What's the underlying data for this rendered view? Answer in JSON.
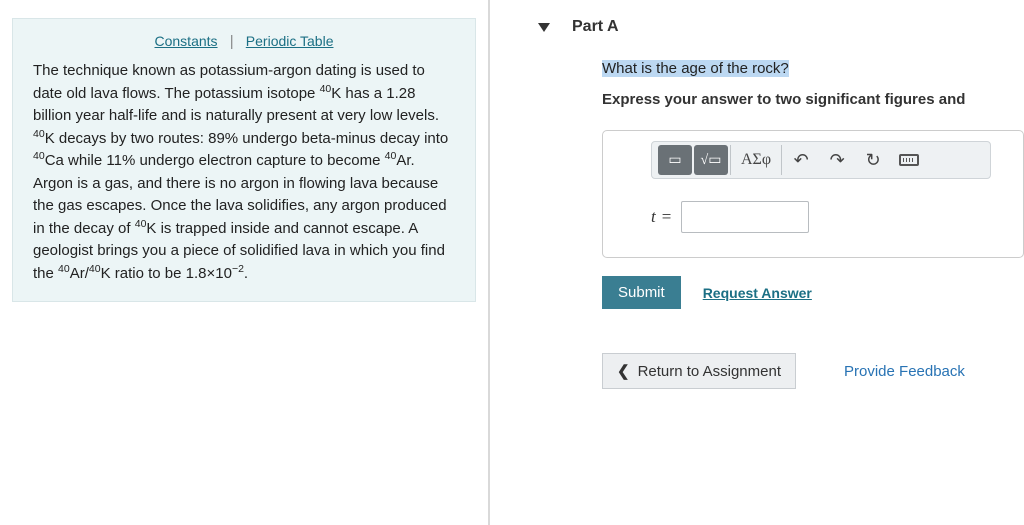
{
  "left": {
    "links": {
      "constants": "Constants",
      "periodic": "Periodic Table"
    },
    "text_html": "The technique known as potassium-argon dating is used to date old lava flows. The potassium isotope <sup>40</sup>K has a 1.28 billion year half-life and is naturally present at very low levels. <sup>40</sup>K decays by two routes: 89% undergo beta-minus decay into <sup>40</sup>Ca while 11% undergo electron capture to become <sup>40</sup>Ar. Argon is a gas, and there is no argon in flowing lava because the gas escapes. Once the lava solidifies, any argon produced in the decay of <sup>40</sup>K is trapped inside and cannot escape. A geologist brings you a piece of solidified lava in which you find the <sup>40</sup>Ar/<sup>40</sup>K ratio to be 1.8×10<sup>−2</sup>."
  },
  "right": {
    "part_label": "Part A",
    "question": "What is the age of the rock?",
    "instruction": "Express your answer to two significant figures and",
    "toolbar": {
      "greek": "ΑΣφ"
    },
    "eq_var": "t",
    "eq_sign": "=",
    "answer_value": "",
    "submit": "Submit",
    "request_answer": "Request Answer",
    "return_btn": "Return to Assignment",
    "feedback": "Provide Feedback"
  }
}
